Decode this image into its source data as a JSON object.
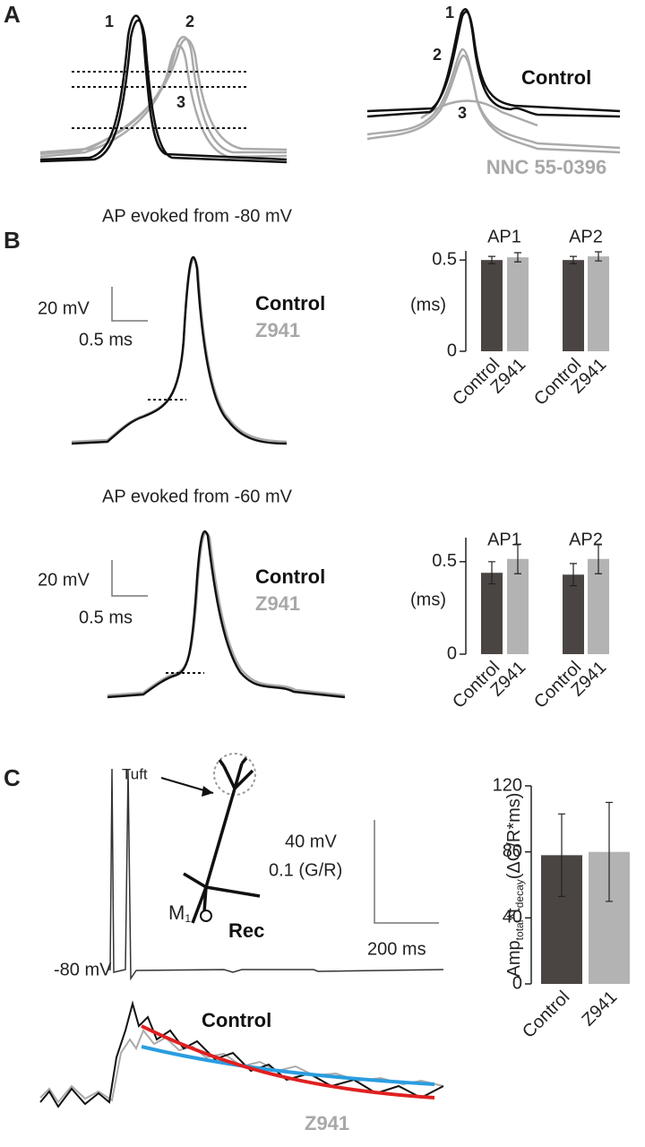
{
  "panel_a": {
    "label": "A",
    "left_numbers": [
      "1",
      "2",
      "3"
    ],
    "right_numbers": [
      "1",
      "2",
      "3"
    ],
    "control": "Control",
    "drug": "NNC 55-0396"
  },
  "panel_b": {
    "label": "B",
    "rows": [
      {
        "title": "AP evoked from -80 mV",
        "scale_v": "20 mV",
        "scale_t": "0.5 ms",
        "control": "Control",
        "drug": "Z941"
      },
      {
        "title": "AP evoked from -60 mV",
        "scale_v": "20 mV",
        "scale_t": "0.5 ms",
        "control": "Control",
        "drug": "Z941"
      }
    ]
  },
  "panel_c": {
    "label": "C",
    "tuft": "Tuft",
    "m": "M",
    "m_sub": "1",
    "rec": "Rec",
    "vm": "-80 mV",
    "scale_v": "40 mV",
    "scale_g": "0.1 (G/R)",
    "scale_t": "200 ms",
    "control": "Control",
    "drug": "Z941"
  },
  "chart_data": [
    {
      "type": "bar",
      "groups": [
        "AP1",
        "AP2"
      ],
      "categories": [
        "Control",
        "Z941",
        "Control",
        "Z941"
      ],
      "values": [
        0.5,
        0.515,
        0.5,
        0.52
      ],
      "errors": [
        0.02,
        0.025,
        0.02,
        0.025
      ],
      "colors": [
        "#4a4543",
        "#b3b3b3",
        "#4a4543",
        "#b3b3b3"
      ],
      "ylabel": "(ms)",
      "ylim": [
        0,
        0.55
      ],
      "yticks": [
        0,
        0.5
      ]
    },
    {
      "type": "bar",
      "groups": [
        "AP1",
        "AP2"
      ],
      "categories": [
        "Control",
        "Z941",
        "Control",
        "Z941"
      ],
      "values": [
        0.44,
        0.515,
        0.43,
        0.515
      ],
      "errors": [
        0.06,
        0.08,
        0.06,
        0.08
      ],
      "colors": [
        "#4a4543",
        "#b3b3b3",
        "#4a4543",
        "#b3b3b3"
      ],
      "ylabel": "(ms)",
      "ylim": [
        0,
        0.63
      ],
      "yticks": [
        0,
        0.5
      ]
    },
    {
      "type": "bar",
      "categories": [
        "Control",
        "Z941"
      ],
      "values": [
        78,
        80
      ],
      "errors": [
        25,
        30
      ],
      "colors": [
        "#4a4543",
        "#b3b3b3"
      ],
      "ylabel_parts": [
        "Amp",
        "total",
        "*t",
        "decay",
        "(ΔG/R*ms)"
      ],
      "ylim": [
        0,
        120
      ],
      "yticks": [
        0,
        40,
        80,
        120
      ]
    }
  ]
}
